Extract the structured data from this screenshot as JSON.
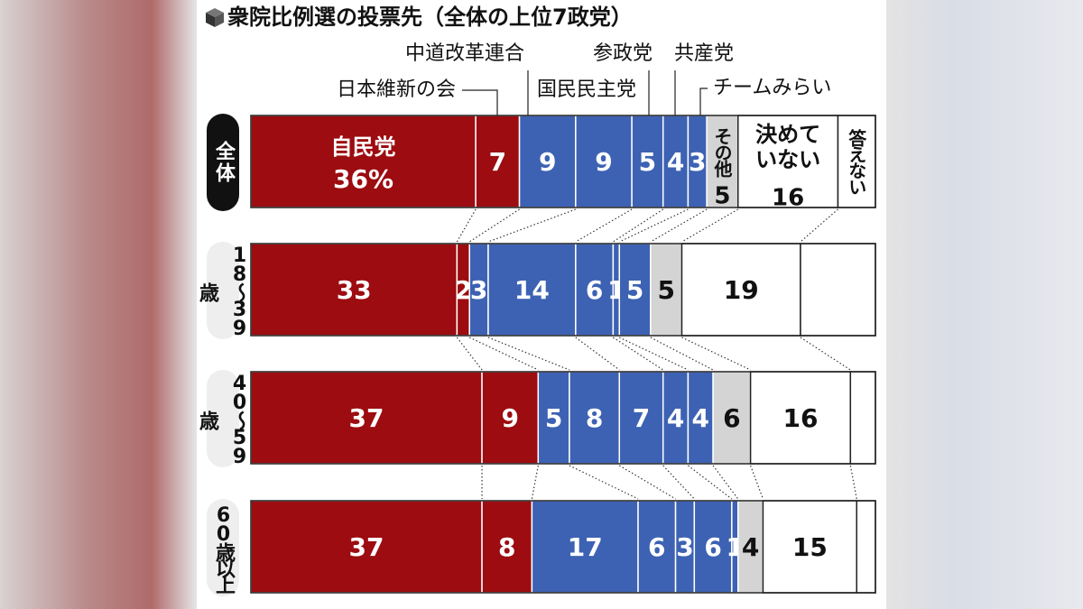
{
  "chart_data": {
    "type": "stacked-bar",
    "title": "衆院比例選の投票先（全体の上位7政党）",
    "categories": [
      "全体",
      "18〜39歳",
      "40〜59歳",
      "60歳以上"
    ],
    "series": [
      {
        "name": "自民党",
        "color": "#9c0c10",
        "values": [
          36,
          33,
          37,
          37
        ],
        "value_labels": [
          "36%",
          "33",
          "37",
          "37"
        ]
      },
      {
        "name": "日本維新の会",
        "color": "#9c0c10",
        "values": [
          7,
          2,
          9,
          8
        ]
      },
      {
        "name": "中道改革連合",
        "color": "#3d62b3",
        "values": [
          9,
          3,
          5,
          17
        ]
      },
      {
        "name": "国民民主党",
        "color": "#3d62b3",
        "values": [
          9,
          14,
          8,
          6
        ]
      },
      {
        "name": "参政党",
        "color": "#3d62b3",
        "values": [
          5,
          6,
          7,
          3
        ]
      },
      {
        "name": "共産党",
        "color": "#3d62b3",
        "values": [
          4,
          1,
          4,
          6
        ]
      },
      {
        "name": "チームみらい",
        "color": "#3d62b3",
        "values": [
          3,
          5,
          4,
          1
        ]
      },
      {
        "name": "その他",
        "color": "#d4d4d4",
        "values": [
          5,
          5,
          6,
          4
        ]
      },
      {
        "name": "決めていない",
        "color": "#ffffff",
        "values": [
          16,
          19,
          16,
          15
        ]
      },
      {
        "name": "答えない",
        "color": "#ffffff",
        "values": [
          6,
          12,
          4,
          3
        ],
        "show_values": false
      }
    ]
  }
}
